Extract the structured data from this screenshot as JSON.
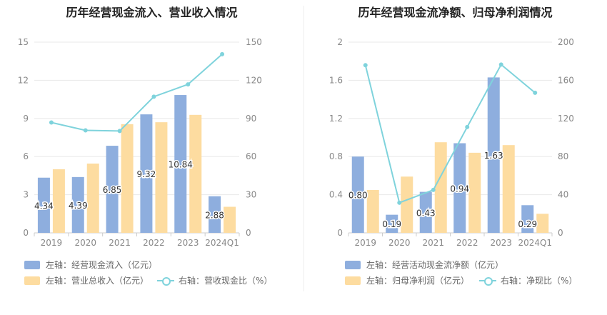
{
  "chart_data": [
    {
      "type": "bar+line",
      "title": "历年经营现金流入、营业收入情况",
      "categories": [
        "2019",
        "2020",
        "2021",
        "2022",
        "2023",
        "2024Q1"
      ],
      "left_axis": {
        "ticks": [
          "0",
          "3",
          "6",
          "9",
          "12",
          "15"
        ],
        "ylim": [
          0,
          15
        ]
      },
      "right_axis": {
        "ticks": [
          "0",
          "30",
          "60",
          "90",
          "120",
          "150"
        ],
        "ylim": [
          0,
          150
        ]
      },
      "series": [
        {
          "name": "左轴：经营现金流入（亿元）",
          "axis": "left",
          "kind": "bar",
          "color": "#8eaede",
          "values": [
            4.34,
            4.39,
            6.85,
            9.32,
            10.84,
            2.88
          ],
          "labels": [
            "4.34",
            "4.39",
            "6.85",
            "9.32",
            "10.84",
            "2.88"
          ]
        },
        {
          "name": "左轴：营业总收入（亿元）",
          "axis": "left",
          "kind": "bar",
          "color": "#fddca0",
          "values": [
            5.0,
            5.45,
            8.55,
            8.7,
            9.28,
            2.05
          ]
        },
        {
          "name": "右轴：营收现金比（%）",
          "axis": "right",
          "kind": "line",
          "color": "#7fd3dc",
          "values": [
            86.8,
            80.6,
            80.1,
            107.1,
            116.8,
            140.5
          ]
        }
      ]
    },
    {
      "type": "bar+line",
      "title": "历年经营现金流净额、归母净利润情况",
      "categories": [
        "2019",
        "2020",
        "2021",
        "2022",
        "2023",
        "2024Q1"
      ],
      "left_axis": {
        "ticks": [
          "0",
          "0.4",
          "0.8",
          "1.2",
          "1.6",
          "2"
        ],
        "ylim": [
          0,
          2
        ]
      },
      "right_axis": {
        "ticks": [
          "0",
          "40",
          "80",
          "120",
          "160",
          "200"
        ],
        "ylim": [
          0,
          200
        ]
      },
      "series": [
        {
          "name": "左轴：经营活动现金流净额（亿元）",
          "axis": "left",
          "kind": "bar",
          "color": "#8eaede",
          "values": [
            0.8,
            0.19,
            0.43,
            0.94,
            1.63,
            0.29
          ],
          "labels": [
            "0.80",
            "0.19",
            "0.43",
            "0.94",
            "1.63",
            "0.29"
          ]
        },
        {
          "name": "左轴：归母净利润（亿元）",
          "axis": "left",
          "kind": "bar",
          "color": "#fddca0",
          "values": [
            0.45,
            0.59,
            0.95,
            0.84,
            0.92,
            0.2
          ]
        },
        {
          "name": "右轴：净现比（%）",
          "axis": "right",
          "kind": "line",
          "color": "#7fd3dc",
          "values": [
            175.8,
            31.6,
            45.0,
            111.0,
            176.5,
            146.9
          ]
        }
      ]
    }
  ]
}
